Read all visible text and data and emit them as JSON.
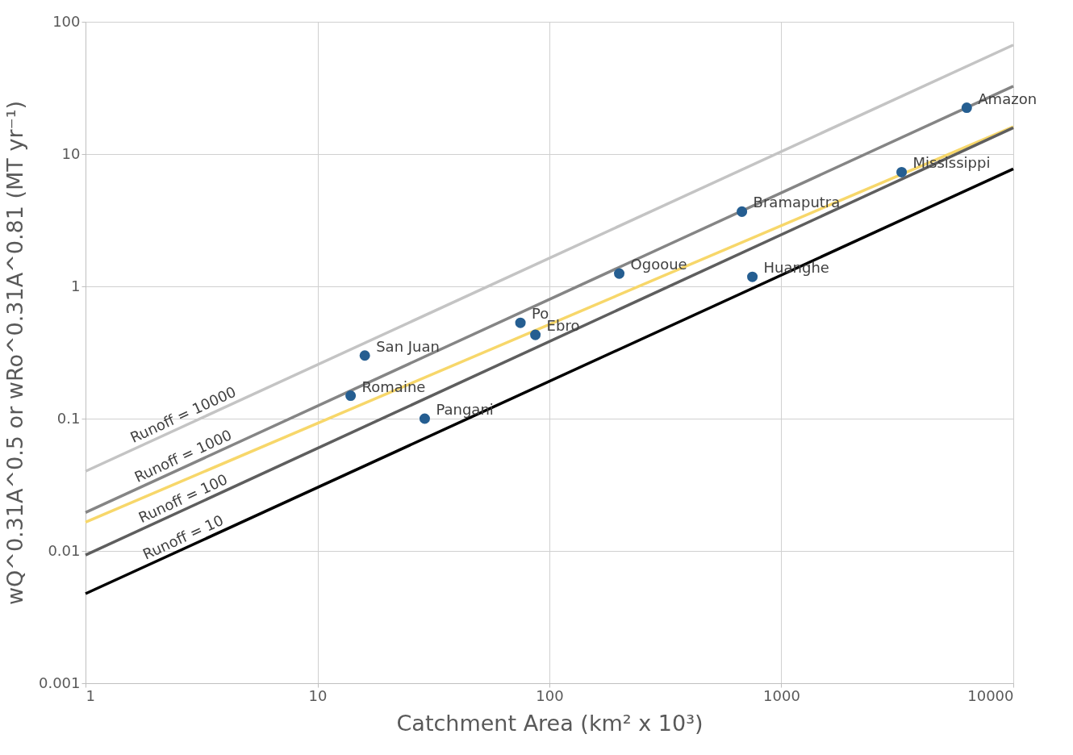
{
  "chart_data": {
    "type": "line",
    "xlabel": "Catchment Area (km² x 10³)",
    "ylabel": "wQ^0.31A^0.5 or wRo^0.31A^0.81  (MT yr⁻¹)",
    "log": "xy",
    "grid": true,
    "xlim": [
      1,
      10000
    ],
    "xticks": [
      1,
      10,
      100,
      1000,
      10000
    ],
    "ylim": [
      0.001,
      100
    ],
    "yticks": [
      0.001,
      0.01,
      0.1,
      1,
      10,
      100
    ],
    "series": [
      {
        "name": "Runoff = 10000",
        "color": "#c4c4c4",
        "x": [
          1,
          10000
        ],
        "values": [
          0.04,
          66.8
        ]
      },
      {
        "name": "Runoff = 1000",
        "color": "#858585",
        "x": [
          1,
          10000
        ],
        "values": [
          0.0195,
          32.6
        ]
      },
      {
        "color": "#f7d76a",
        "x": [
          1,
          10000
        ],
        "values": [
          0.0165,
          16.1
        ]
      },
      {
        "name": "Runoff = 100",
        "color": "#5e5e5e",
        "x": [
          1,
          10000
        ],
        "values": [
          0.0093,
          15.8
        ]
      },
      {
        "name": "Runoff = 10",
        "color": "#000000",
        "x": [
          1,
          10000
        ],
        "values": [
          0.00475,
          7.73
        ]
      },
      {
        "type": "scatter",
        "marker": "circle",
        "color": "#255e91",
        "x": [
          6300,
          3300,
          676,
          750,
          200,
          75,
          87,
          16,
          13.9,
          29
        ],
        "values": [
          22.4,
          7.3,
          3.67,
          1.18,
          1.25,
          0.53,
          0.43,
          0.3,
          0.149,
          0.1
        ]
      }
    ],
    "annotations": [
      {
        "text": "Amazon",
        "x": 6300,
        "y": 22.4
      },
      {
        "text": "Mississippi",
        "x": 3300,
        "y": 7.3
      },
      {
        "text": "Bramaputra",
        "x": 676,
        "y": 3.67
      },
      {
        "text": "Huanghe",
        "x": 750,
        "y": 1.18
      },
      {
        "text": "Ogooue",
        "x": 200,
        "y": 1.25
      },
      {
        "text": "Po",
        "x": 75,
        "y": 0.53
      },
      {
        "text": "Ebro",
        "x": 87,
        "y": 0.43
      },
      {
        "text": "San Juan",
        "x": 16,
        "y": 0.3
      },
      {
        "text": "Romaine",
        "x": 13.9,
        "y": 0.149
      },
      {
        "text": "Pangani",
        "x": 29,
        "y": 0.1
      }
    ]
  }
}
